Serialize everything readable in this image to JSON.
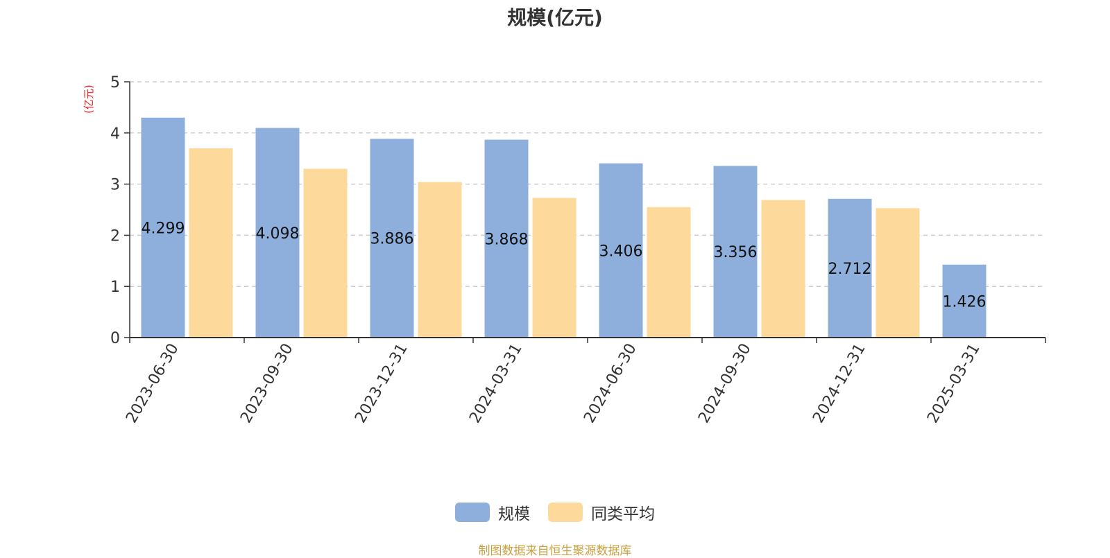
{
  "chart_data": {
    "type": "bar",
    "title": "规模(亿元)",
    "ylabel": "(亿元)",
    "ylim": [
      0,
      5
    ],
    "yticks": [
      0,
      1,
      2,
      3,
      4,
      5
    ],
    "grid": true,
    "legend_position": "bottom-center",
    "categories": [
      "2023-06-30",
      "2023-09-30",
      "2023-12-31",
      "2024-03-31",
      "2024-06-30",
      "2024-09-30",
      "2024-12-31",
      "2025-03-31"
    ],
    "series": [
      {
        "name": "规模",
        "color": "#8eaedb",
        "values": [
          4.299,
          4.098,
          3.886,
          3.868,
          3.406,
          3.356,
          2.712,
          1.426
        ],
        "labels": [
          "4.299",
          "4.098",
          "3.886",
          "3.868",
          "3.406",
          "3.356",
          "2.712",
          "1.426"
        ]
      },
      {
        "name": "同类平均",
        "color": "#fdd99b",
        "values": [
          3.7,
          3.3,
          3.04,
          2.73,
          2.55,
          2.69,
          2.53,
          null
        ]
      }
    ]
  },
  "footer": {
    "source": "制图数据来自恒生聚源数据库"
  },
  "colors": {
    "title": "#333333",
    "ylabel": "#ee2222",
    "source": "#c8a040",
    "axis": "#333333",
    "grid": "#cccccc"
  }
}
